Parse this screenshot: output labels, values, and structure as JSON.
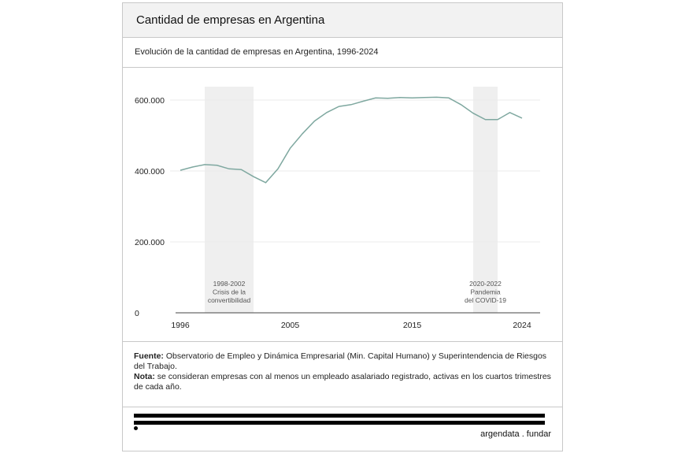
{
  "title": "Cantidad de empresas en Argentina",
  "subtitle": "Evolución de la cantidad de empresas en Argentina, 1996-2024",
  "chart_data": {
    "type": "line",
    "x": [
      1996,
      1997,
      1998,
      1999,
      2000,
      2001,
      2002,
      2003,
      2004,
      2005,
      2006,
      2007,
      2008,
      2009,
      2010,
      2011,
      2012,
      2013,
      2014,
      2015,
      2016,
      2017,
      2018,
      2019,
      2020,
      2021,
      2022,
      2023,
      2024
    ],
    "values": [
      402000,
      411000,
      418000,
      416000,
      406000,
      404000,
      384000,
      367000,
      406000,
      464000,
      505000,
      541000,
      565000,
      582000,
      587000,
      597000,
      606000,
      605000,
      607000,
      606000,
      607000,
      608000,
      606000,
      587000,
      563000,
      545000,
      545000,
      565000,
      549000
    ],
    "color": "#7fa8a0",
    "xlim": [
      1996,
      2024
    ],
    "ylim": [
      0,
      620000
    ],
    "xticks": [
      "1996",
      "2005",
      "2015",
      "2024"
    ],
    "xtick_values": [
      1996,
      2005,
      2015,
      2024
    ],
    "yticks": [
      "0",
      "200.000",
      "400.000",
      "600.000"
    ],
    "ytick_values": [
      0,
      200000,
      400000,
      600000
    ],
    "grid": true,
    "bands": [
      {
        "from": 1998,
        "to": 2002,
        "lines": [
          "1998-2002",
          "Crisis de la",
          "convertibilidad"
        ]
      },
      {
        "from": 2020,
        "to": 2022,
        "lines": [
          "2020-2022",
          "Pandemia",
          "del COVID-19"
        ]
      }
    ]
  },
  "footer": {
    "source_label": "Fuente:",
    "source_text": " Observatorio de Empleo y Dinámica Empresarial (Min. Capital Humano) y Superintendencia de Riesgos del Trabajo.",
    "note_label": "Nota:",
    "note_text": " se consideran empresas con al menos un empleado asalariado registrado, activas en los cuartos trimestres de cada año."
  },
  "brand": "argendata . fundar"
}
